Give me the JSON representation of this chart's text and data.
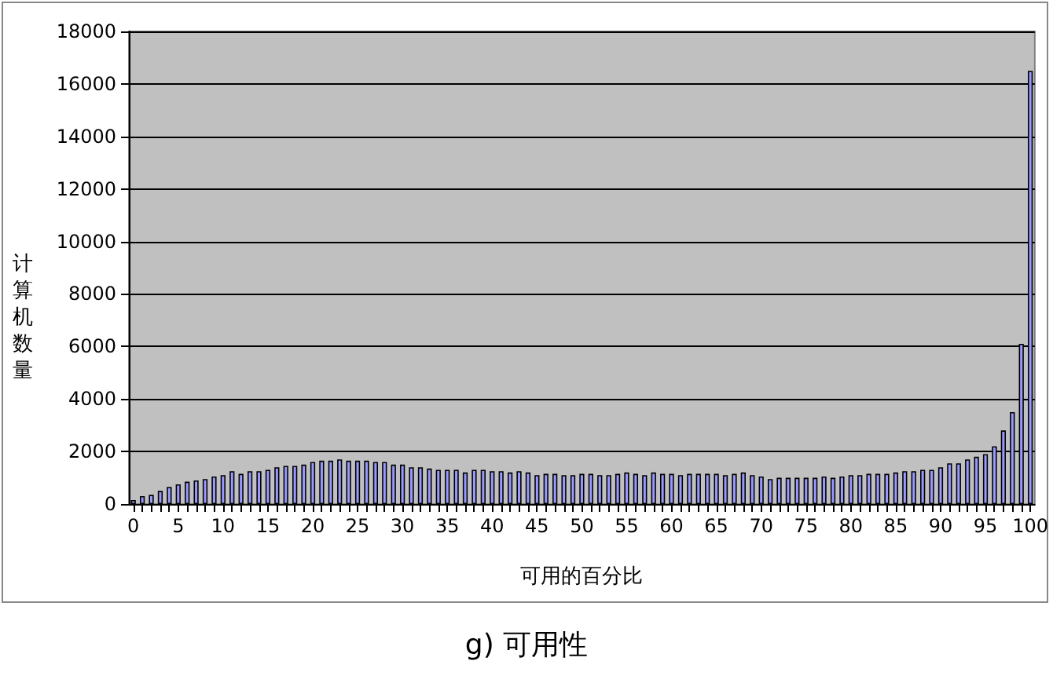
{
  "chart_data": {
    "type": "bar",
    "xlabel": "可用的百分比",
    "ylabel": "计算机数量",
    "annotations": [
      "g) 可用性"
    ],
    "categories": [
      "0",
      null,
      null,
      null,
      null,
      "5",
      null,
      null,
      null,
      null,
      "10",
      null,
      null,
      null,
      null,
      "15",
      null,
      null,
      null,
      null,
      "20",
      null,
      null,
      null,
      null,
      "25",
      null,
      null,
      null,
      null,
      "30",
      null,
      null,
      null,
      null,
      "35",
      null,
      null,
      null,
      null,
      "40",
      null,
      null,
      null,
      null,
      "45",
      null,
      null,
      null,
      null,
      "50",
      null,
      null,
      null,
      null,
      "55",
      null,
      null,
      null,
      null,
      "60",
      null,
      null,
      null,
      null,
      "65",
      null,
      null,
      null,
      null,
      "70",
      null,
      null,
      null,
      null,
      "75",
      null,
      null,
      null,
      null,
      "80",
      null,
      null,
      null,
      null,
      "85",
      null,
      null,
      null,
      null,
      "90",
      null,
      null,
      null,
      null,
      "95",
      null,
      null,
      null,
      null,
      "100"
    ],
    "values": [
      150,
      300,
      350,
      500,
      650,
      750,
      850,
      900,
      950,
      1050,
      1100,
      1250,
      1150,
      1250,
      1250,
      1300,
      1400,
      1450,
      1450,
      1500,
      1600,
      1650,
      1650,
      1700,
      1650,
      1650,
      1650,
      1600,
      1600,
      1500,
      1500,
      1400,
      1400,
      1350,
      1300,
      1300,
      1300,
      1200,
      1300,
      1300,
      1250,
      1250,
      1200,
      1250,
      1200,
      1100,
      1150,
      1150,
      1100,
      1100,
      1150,
      1150,
      1100,
      1100,
      1150,
      1200,
      1150,
      1100,
      1200,
      1150,
      1150,
      1100,
      1150,
      1150,
      1150,
      1150,
      1100,
      1150,
      1200,
      1100,
      1050,
      950,
      1000,
      1000,
      1000,
      1000,
      1000,
      1050,
      1000,
      1050,
      1100,
      1100,
      1150,
      1150,
      1150,
      1200,
      1250,
      1250,
      1300,
      1300,
      1400,
      1550,
      1550,
      1700,
      1800,
      1900,
      2200,
      2800,
      3500,
      6100,
      16500
    ],
    "color": "#9999ff",
    "ylim": [
      0,
      18000
    ],
    "yticks": [
      0,
      2000,
      4000,
      6000,
      8000,
      10000,
      12000,
      14000,
      16000,
      18000
    ],
    "grid": "y"
  }
}
